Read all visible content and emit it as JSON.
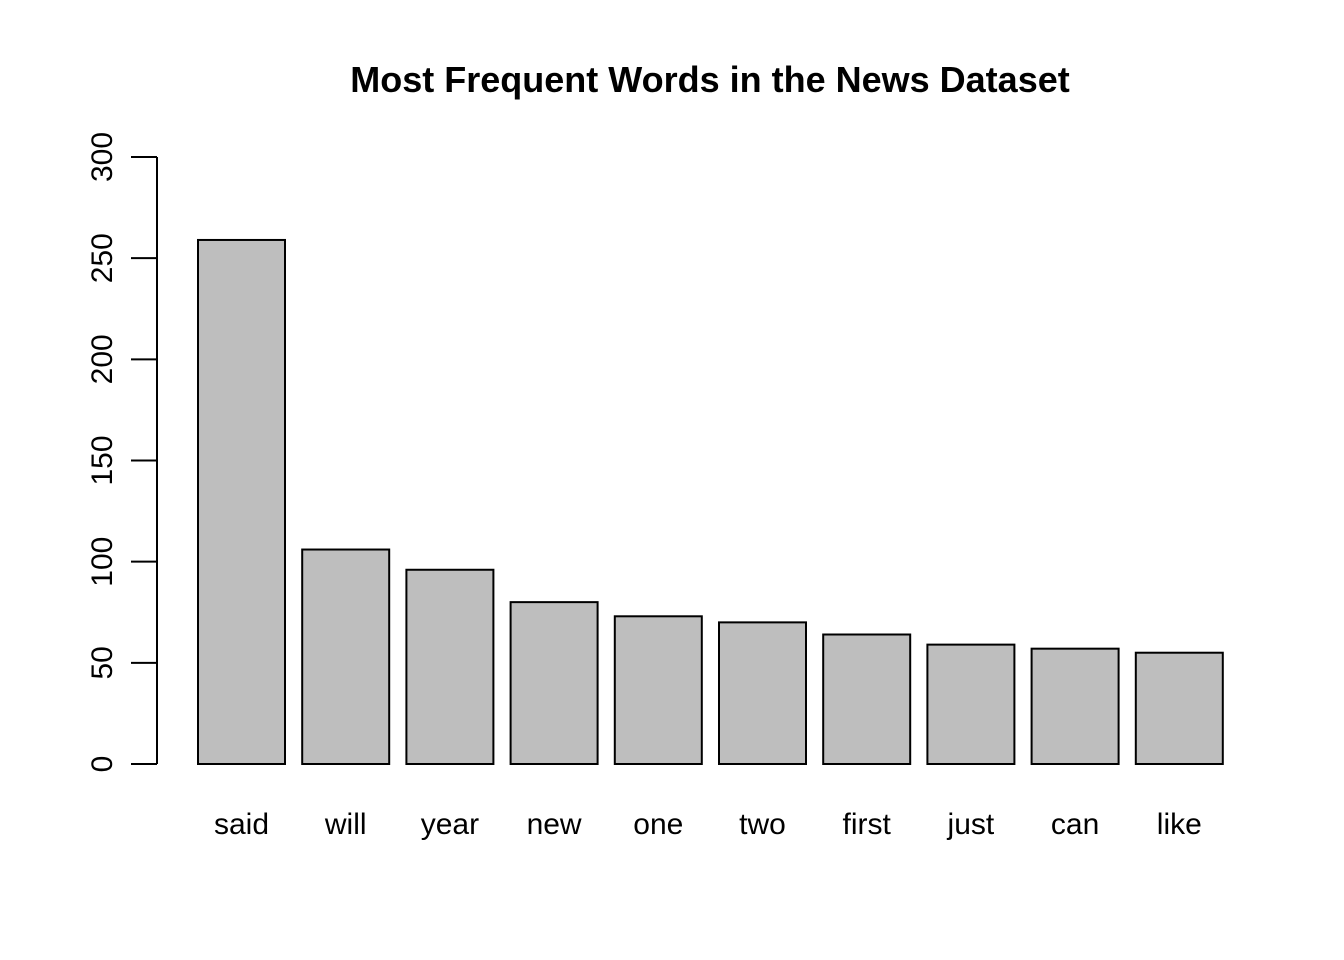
{
  "chart_data": {
    "type": "bar",
    "title": "Most Frequent Words in the News Dataset",
    "xlabel": "",
    "ylabel": "",
    "categories": [
      "said",
      "will",
      "year",
      "new",
      "one",
      "two",
      "first",
      "just",
      "can",
      "like"
    ],
    "values": [
      259,
      106,
      96,
      80,
      73,
      70,
      64,
      59,
      57,
      55
    ],
    "ylim": [
      0,
      300
    ],
    "yticks": [
      0,
      50,
      100,
      150,
      200,
      250,
      300
    ],
    "grid": false,
    "legend": "none",
    "bar_color": "#bebebe",
    "border_color": "#000000"
  }
}
